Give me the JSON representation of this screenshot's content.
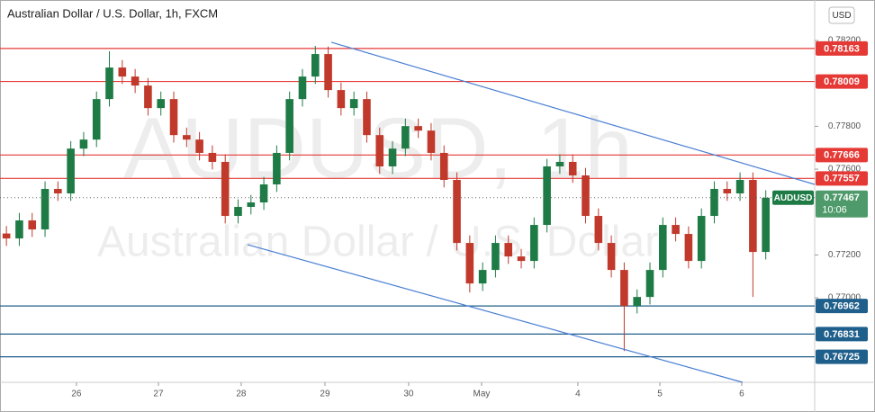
{
  "chart_data": {
    "type": "candlestick",
    "title": "Australian Dollar / U.S. Dollar, 1h, FXCM",
    "watermark": "AUDUSD, 1h",
    "watermark_subtitle": "Australian Dollar / U.S. Dollar",
    "currency_button": "USD",
    "symbol": "AUDUSD",
    "last_price": 0.77467,
    "countdown": "10:06",
    "up_color": "#1e7b45",
    "down_color": "#c0392b",
    "xlim": [
      -0.5,
      62.8
    ],
    "xticks": [
      {
        "value": 5.44,
        "label": "26"
      },
      {
        "value": 11.81,
        "label": "27"
      },
      {
        "value": 18.24,
        "label": "28"
      },
      {
        "value": 24.75,
        "label": "29"
      },
      {
        "value": 31.25,
        "label": "30"
      },
      {
        "value": 36.92,
        "label": "May"
      },
      {
        "value": 44.4,
        "label": "4"
      },
      {
        "value": 50.77,
        "label": "5"
      },
      {
        "value": 57.13,
        "label": "6"
      }
    ],
    "ylim": [
      0.76606,
      0.78389
    ],
    "yticks": [
      {
        "value": 0.782,
        "label": "0.78200"
      },
      {
        "value": 0.778,
        "label": "0.77800"
      },
      {
        "value": 0.776,
        "label": "0.77600"
      },
      {
        "value": 0.772,
        "label": "0.77200"
      },
      {
        "value": 0.77,
        "label": "0.77000"
      }
    ],
    "open": [
      0.773,
      0.77277,
      0.77361,
      0.77319,
      0.77508,
      0.77487,
      0.77696,
      0.77738,
      0.77927,
      0.78074,
      0.78032,
      0.7799,
      0.77885,
      0.77927,
      0.77759,
      0.77738,
      0.77676,
      0.77634,
      0.77382,
      0.77424,
      0.77445,
      0.77529,
      0.77676,
      0.77927,
      0.78032,
      0.78137,
      0.77969,
      0.77885,
      0.77927,
      0.77759,
      0.77613,
      0.77696,
      0.77801,
      0.7778,
      0.77676,
      0.7755,
      0.77256,
      0.77067,
      0.7713,
      0.77256,
      0.77193,
      0.77172,
      0.7734,
      0.77613,
      0.77634,
      0.77571,
      0.77382,
      0.77256,
      0.7713,
      0.76962,
      0.77004,
      0.7713,
      0.7734,
      0.77298,
      0.77172,
      0.77382,
      0.77508,
      0.77487,
      0.7755,
      0.77214
    ],
    "high": [
      0.77335,
      0.77396,
      0.77396,
      0.77543,
      0.77543,
      0.77731,
      0.77773,
      0.77962,
      0.7815,
      0.78109,
      0.78067,
      0.78025,
      0.77962,
      0.77962,
      0.77794,
      0.77773,
      0.77711,
      0.77669,
      0.77459,
      0.7748,
      0.77564,
      0.77711,
      0.77962,
      0.78067,
      0.78175,
      0.78172,
      0.78004,
      0.77962,
      0.77962,
      0.77794,
      0.77731,
      0.77836,
      0.77836,
      0.77815,
      0.77711,
      0.77585,
      0.77291,
      0.77165,
      0.77291,
      0.77291,
      0.77228,
      0.77375,
      0.77648,
      0.77669,
      0.77669,
      0.77606,
      0.77417,
      0.77291,
      0.77165,
      0.77039,
      0.77165,
      0.77375,
      0.77375,
      0.77333,
      0.77417,
      0.77543,
      0.77543,
      0.77585,
      0.77585,
      0.77502
    ],
    "low": [
      0.77242,
      0.77242,
      0.77284,
      0.77284,
      0.77452,
      0.77452,
      0.77661,
      0.77703,
      0.77892,
      0.77997,
      0.77955,
      0.7785,
      0.7785,
      0.77724,
      0.77703,
      0.77641,
      0.77599,
      0.77347,
      0.77347,
      0.77389,
      0.7741,
      0.77494,
      0.77641,
      0.77892,
      0.77997,
      0.77934,
      0.7785,
      0.7785,
      0.77724,
      0.77578,
      0.77578,
      0.77661,
      0.77745,
      0.77641,
      0.77515,
      0.77221,
      0.77025,
      0.77032,
      0.77095,
      0.77158,
      0.77137,
      0.77137,
      0.77305,
      0.77578,
      0.77536,
      0.77347,
      0.77221,
      0.77095,
      0.76752,
      0.76927,
      0.76969,
      0.77095,
      0.77263,
      0.77137,
      0.77137,
      0.77347,
      0.77452,
      0.77452,
      0.77004,
      0.77179
    ],
    "close": [
      0.77277,
      0.77361,
      0.77319,
      0.77508,
      0.77487,
      0.77696,
      0.77738,
      0.77927,
      0.78074,
      0.78032,
      0.7799,
      0.77885,
      0.77927,
      0.77759,
      0.77738,
      0.77676,
      0.77634,
      0.77382,
      0.77424,
      0.77445,
      0.77529,
      0.77676,
      0.77927,
      0.78032,
      0.78137,
      0.77969,
      0.77885,
      0.77927,
      0.77759,
      0.77613,
      0.77696,
      0.77801,
      0.7778,
      0.77676,
      0.7755,
      0.77256,
      0.77067,
      0.7713,
      0.77256,
      0.77193,
      0.77172,
      0.7734,
      0.77613,
      0.77634,
      0.77571,
      0.77382,
      0.77256,
      0.7713,
      0.76962,
      0.77004,
      0.7713,
      0.7734,
      0.77298,
      0.77172,
      0.77382,
      0.77508,
      0.77487,
      0.7755,
      0.77214,
      0.77467
    ],
    "levels": [
      {
        "value": 0.78163,
        "color": "#e53935"
      },
      {
        "value": 0.78009,
        "color": "#e53935"
      },
      {
        "value": 0.77666,
        "color": "#e53935"
      },
      {
        "value": 0.77557,
        "color": "#e53935"
      },
      {
        "value": 0.76962,
        "color": "#1f5f8b"
      },
      {
        "value": 0.76831,
        "color": "#1f5f8b"
      },
      {
        "value": 0.76725,
        "color": "#1f5f8b"
      }
    ],
    "trendlines": [
      {
        "color": "#4a7fd4",
        "x": [
          25.24,
          62.8
        ],
        "y": [
          0.78192,
          0.77529
        ]
      },
      {
        "color": "#4a7fd4",
        "x": [
          18.73,
          57.2
        ],
        "y": [
          0.77248,
          0.76606
        ]
      }
    ]
  }
}
